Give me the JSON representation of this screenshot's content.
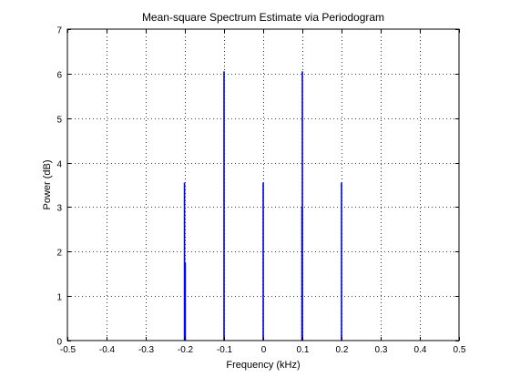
{
  "chart_data": {
    "type": "bar",
    "title": "Mean-square Spectrum Estimate via Periodogram",
    "xlabel": "Frequency (kHz)",
    "ylabel": "Power (dB)",
    "xlim": [
      -0.5,
      0.5
    ],
    "ylim": [
      0,
      7
    ],
    "xticks": [
      "-0.5",
      "-0.4",
      "-0.3",
      "-0.2",
      "-0.1",
      "0",
      "0.1",
      "0.2",
      "0.3",
      "0.4",
      "0.5"
    ],
    "yticks": [
      "0",
      "1",
      "2",
      "3",
      "4",
      "5",
      "6",
      "7"
    ],
    "grid": true,
    "series": [
      {
        "color": "#0000ff",
        "points": [
          {
            "x": -0.201,
            "y": 3.55
          },
          {
            "x": -0.199,
            "y": 1.75
          },
          {
            "x": -0.1,
            "y": 6.05
          },
          {
            "x": 0.0,
            "y": 3.55
          },
          {
            "x": 0.099,
            "y": 3.0
          },
          {
            "x": 0.1,
            "y": 6.05
          },
          {
            "x": 0.2,
            "y": 3.55
          }
        ]
      }
    ]
  }
}
